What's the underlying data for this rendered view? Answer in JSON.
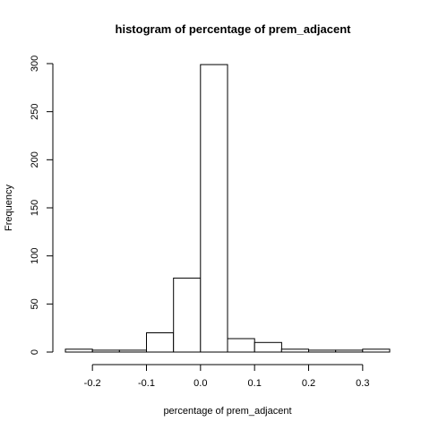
{
  "chart_data": {
    "type": "bar",
    "subtype": "histogram",
    "title": "histogram of percentage of prem_adjacent",
    "xlabel": "percentage of prem_adjacent",
    "ylabel": "Frequency",
    "bin_edges": [
      -0.25,
      -0.2,
      -0.15,
      -0.1,
      -0.05,
      0.0,
      0.05,
      0.1,
      0.15,
      0.2,
      0.25,
      0.3,
      0.35
    ],
    "values": [
      3,
      2,
      2,
      20,
      77,
      299,
      14,
      10,
      3,
      2,
      2,
      3
    ],
    "xlim": [
      -0.25,
      0.35
    ],
    "ylim": [
      0,
      300
    ],
    "x_ticks": [
      -0.2,
      -0.1,
      0.0,
      0.1,
      0.2,
      0.3
    ],
    "x_tick_labels": [
      "-0.2",
      "-0.1",
      "0.0",
      "0.1",
      "0.2",
      "0.3"
    ],
    "y_ticks": [
      0,
      50,
      100,
      150,
      200,
      250,
      300
    ],
    "y_tick_labels": [
      "0",
      "50",
      "100",
      "150",
      "200",
      "250",
      "300"
    ],
    "grid": false,
    "bar_fill": "#ffffff",
    "bar_stroke": "#000000"
  }
}
